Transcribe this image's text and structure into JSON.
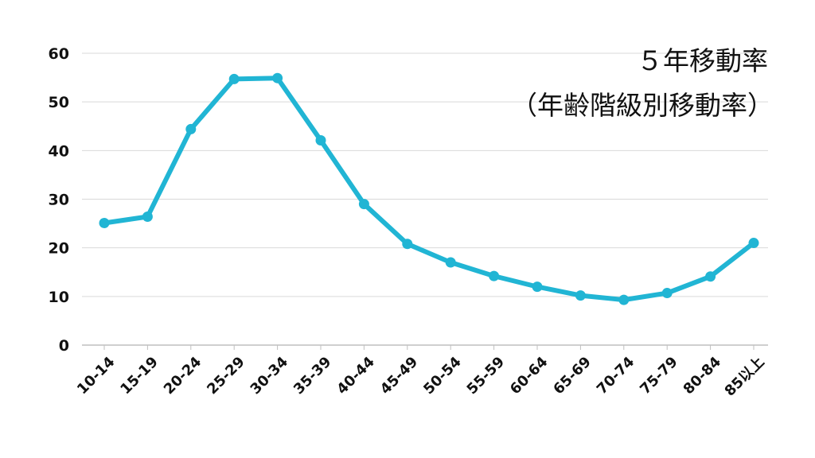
{
  "chart_data": {
    "type": "line",
    "title_lines": [
      "５年移動率",
      "（年齢階級別移動率）"
    ],
    "categories": [
      "10-14",
      "15-19",
      "20-24",
      "25-29",
      "30-34",
      "35-39",
      "40-44",
      "45-49",
      "50-54",
      "55-59",
      "60-64",
      "65-69",
      "70-74",
      "75-79",
      "80-84",
      "85以上"
    ],
    "series": [
      {
        "values": [
          25.1,
          26.4,
          44.4,
          54.7,
          54.9,
          42.1,
          29.0,
          20.8,
          17.0,
          14.2,
          12.0,
          10.2,
          9.3,
          10.7,
          14.1,
          21.0
        ]
      }
    ],
    "yticks": [
      0,
      10,
      20,
      30,
      40,
      50,
      60
    ],
    "ylim": [
      0,
      60
    ],
    "grid": true,
    "line_color": "#21b5d4",
    "grid_color": "#d9d9d9",
    "axis_color": "#bfbfbf"
  }
}
